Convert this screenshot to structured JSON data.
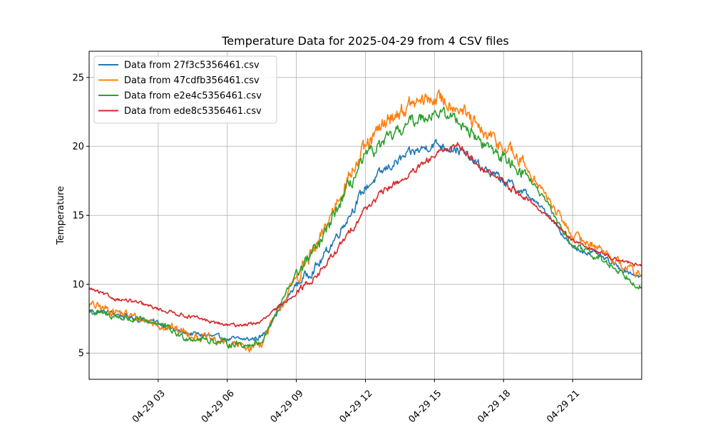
{
  "chart_data": {
    "type": "line",
    "title": "Temperature Data for 2025-04-29 from 4 CSV files",
    "xlabel": "",
    "ylabel": "Temperature",
    "xlim_hours": [
      0,
      24
    ],
    "ylim": [
      3.1,
      26.9
    ],
    "x_ticks": [
      {
        "hour": 3,
        "label": "04-29 03"
      },
      {
        "hour": 6,
        "label": "04-29 06"
      },
      {
        "hour": 9,
        "label": "04-29 09"
      },
      {
        "hour": 12,
        "label": "04-29 12"
      },
      {
        "hour": 15,
        "label": "04-29 15"
      },
      {
        "hour": 18,
        "label": "04-29 18"
      },
      {
        "hour": 21,
        "label": "04-29 21"
      }
    ],
    "y_ticks": [
      5,
      10,
      15,
      20,
      25
    ],
    "grid": true,
    "legend_position": "upper-left",
    "x_hours": [
      0,
      1,
      2,
      3,
      4,
      5,
      6,
      7,
      7.5,
      8,
      9,
      10,
      11,
      12,
      13,
      14,
      15,
      16,
      17,
      18,
      19,
      20,
      21,
      22,
      23,
      24
    ],
    "series": [
      {
        "name": "Data from 27f3c5356461.csv",
        "color": "#1f77b4",
        "noise": 0.35,
        "values": [
          8.1,
          7.9,
          7.5,
          7.2,
          6.5,
          6.3,
          6.0,
          6.0,
          6.2,
          7.5,
          10.0,
          11.5,
          14.2,
          17.0,
          18.5,
          19.5,
          20.2,
          19.8,
          18.5,
          17.5,
          16.5,
          15.0,
          12.6,
          12.2,
          11.2,
          10.5
        ]
      },
      {
        "name": "Data from 47cdfb356461.csv",
        "color": "#ff7f0e",
        "noise": 0.6,
        "values": [
          8.5,
          8.1,
          7.6,
          7.1,
          6.6,
          6.1,
          5.7,
          5.4,
          5.8,
          7.3,
          10.5,
          13.0,
          17.0,
          19.8,
          22.0,
          23.0,
          23.5,
          23.0,
          21.0,
          20.0,
          18.5,
          16.0,
          13.5,
          12.8,
          11.6,
          10.6
        ]
      },
      {
        "name": "Data from e2e4c5356461.csv",
        "color": "#2ca02c",
        "noise": 0.45,
        "values": [
          8.0,
          7.7,
          7.4,
          7.2,
          6.2,
          6.0,
          5.7,
          5.6,
          5.9,
          7.5,
          10.8,
          12.8,
          16.2,
          19.2,
          20.5,
          21.8,
          22.5,
          22.0,
          20.3,
          19.2,
          18.0,
          15.5,
          12.8,
          12.0,
          11.0,
          9.8
        ]
      },
      {
        "name": "Data from ede8c5356461.csv",
        "color": "#d62728",
        "noise": 0.25,
        "values": [
          9.7,
          9.0,
          8.7,
          8.2,
          7.8,
          7.4,
          7.0,
          7.1,
          7.3,
          8.0,
          9.4,
          10.8,
          13.0,
          15.5,
          17.0,
          18.0,
          19.3,
          20.2,
          18.5,
          17.4,
          16.2,
          14.8,
          13.2,
          12.4,
          11.8,
          11.3
        ]
      }
    ]
  }
}
